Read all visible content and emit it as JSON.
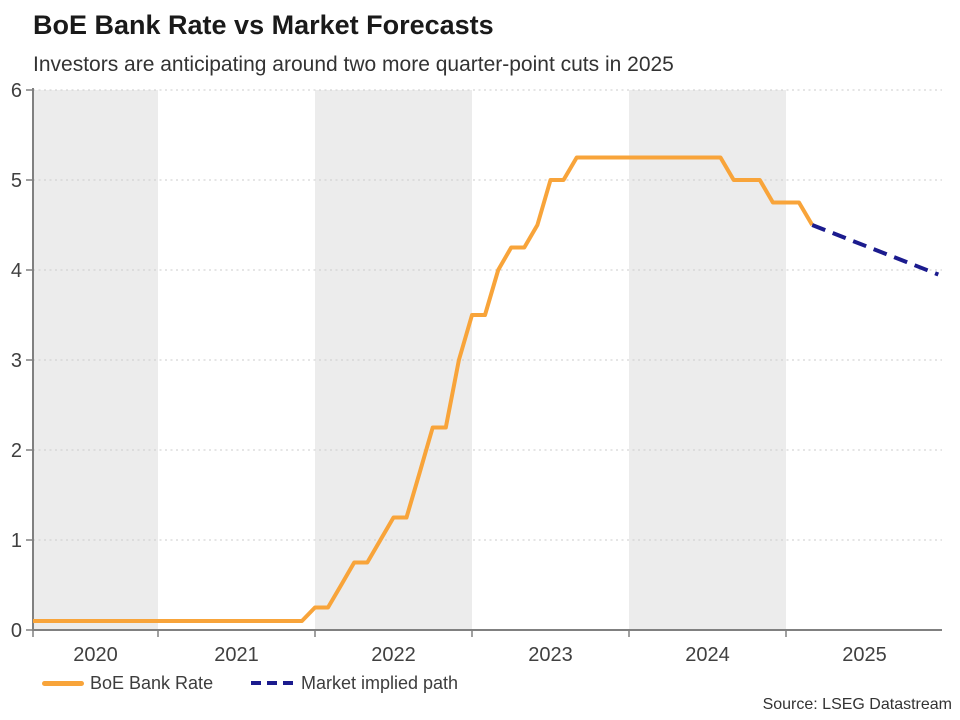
{
  "header": {
    "title": "BoE Bank Rate vs Market Forecasts",
    "subtitle": "Investors are anticipating around two more quarter-point cuts in 2025"
  },
  "legend": {
    "items": [
      {
        "label": "BoE Bank Rate",
        "color": "#F8A43A",
        "style": "solid"
      },
      {
        "label": "Market implied path",
        "color": "#1B1B8E",
        "style": "dashed"
      }
    ]
  },
  "source": "Source: LSEG Datastream",
  "chart_data": {
    "type": "line",
    "title": "BoE Bank Rate vs Market Forecasts",
    "subtitle": "Investors are anticipating around two more quarter-point cuts in 2025",
    "x_convention": "decimal year (year + month/12), monthly stepped data",
    "x_range": [
      2020.204,
      2026.0
    ],
    "ylim": [
      0,
      6
    ],
    "yticks": [
      0,
      1,
      2,
      3,
      4,
      5,
      6
    ],
    "xtick_positions": [
      2020.204,
      2021,
      2022,
      2023,
      2024,
      2025
    ],
    "xlabels": [
      {
        "label": "2020",
        "span": [
          2020.204,
          2021
        ]
      },
      {
        "label": "2021",
        "span": [
          2021,
          2022
        ]
      },
      {
        "label": "2022",
        "span": [
          2022,
          2023
        ]
      },
      {
        "label": "2023",
        "span": [
          2023,
          2024
        ]
      },
      {
        "label": "2024",
        "span": [
          2024,
          2025
        ]
      },
      {
        "label": "2025",
        "span": [
          2025,
          2026
        ]
      }
    ],
    "shaded_spans": [
      [
        2020.204,
        2021
      ],
      [
        2022,
        2023
      ],
      [
        2024,
        2025
      ]
    ],
    "band_color": "#ECECEC",
    "grid_color": "#CBCBCB",
    "axis_color": "#808080",
    "tick_label_color": "#404040",
    "grid": "dotted horizontal",
    "legend_position": "bottom-left",
    "series": [
      {
        "id": "boe-bank-rate",
        "name": "BoE Bank Rate",
        "color": "#F8A43A",
        "dash": null,
        "points": [
          [
            2020.2,
            0.1
          ],
          [
            2021.917,
            0.1
          ],
          [
            2022.0,
            0.25
          ],
          [
            2022.083,
            0.25
          ],
          [
            2022.167,
            0.5
          ],
          [
            2022.25,
            0.75
          ],
          [
            2022.333,
            0.75
          ],
          [
            2022.417,
            1.0
          ],
          [
            2022.5,
            1.25
          ],
          [
            2022.583,
            1.25
          ],
          [
            2022.667,
            1.75
          ],
          [
            2022.75,
            2.25
          ],
          [
            2022.833,
            2.25
          ],
          [
            2022.917,
            3.0
          ],
          [
            2023.0,
            3.5
          ],
          [
            2023.083,
            3.5
          ],
          [
            2023.167,
            4.0
          ],
          [
            2023.25,
            4.25
          ],
          [
            2023.333,
            4.25
          ],
          [
            2023.417,
            4.5
          ],
          [
            2023.5,
            5.0
          ],
          [
            2023.583,
            5.0
          ],
          [
            2023.667,
            5.25
          ],
          [
            2024.583,
            5.25
          ],
          [
            2024.667,
            5.0
          ],
          [
            2024.833,
            5.0
          ],
          [
            2024.917,
            4.75
          ],
          [
            2025.083,
            4.75
          ],
          [
            2025.167,
            4.5
          ]
        ]
      },
      {
        "id": "market-implied-path",
        "name": "Market implied path",
        "color": "#1B1B8E",
        "dash": "14 8",
        "points": [
          [
            2025.167,
            4.5
          ],
          [
            2025.97,
            3.95
          ]
        ]
      }
    ]
  }
}
